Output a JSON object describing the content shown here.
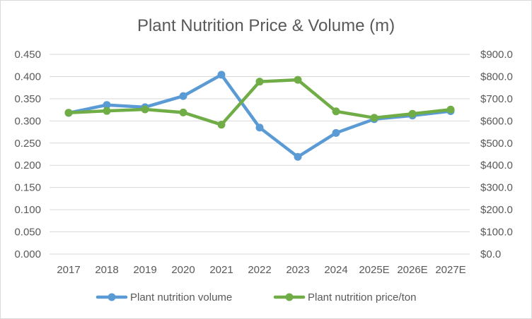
{
  "chart_data": {
    "type": "line",
    "title": "Plant Nutrition Price & Volume (m)",
    "categories": [
      "2017",
      "2018",
      "2019",
      "2020",
      "2021",
      "2022",
      "2023",
      "2024",
      "2025E",
      "2026E",
      "2027E"
    ],
    "series": [
      {
        "name": "Plant nutrition volume",
        "axis": "left",
        "color": "#5b9bd5",
        "values": [
          0.318,
          0.336,
          0.331,
          0.356,
          0.404,
          0.285,
          0.219,
          0.273,
          0.304,
          0.312,
          0.322
        ]
      },
      {
        "name": "Plant nutrition price/ton",
        "axis": "right",
        "color": "#70ad47",
        "values": [
          637,
          645,
          652,
          638,
          583,
          777,
          785,
          643,
          614,
          632,
          651
        ]
      }
    ],
    "y_left": {
      "min": 0,
      "max": 0.45,
      "step": 0.05,
      "tick_labels": [
        "0.000",
        "0.050",
        "0.100",
        "0.150",
        "0.200",
        "0.250",
        "0.300",
        "0.350",
        "0.400",
        "0.450"
      ]
    },
    "y_right": {
      "min": 0,
      "max": 900,
      "step": 100,
      "tick_labels": [
        "$0.0",
        "$100.0",
        "$200.0",
        "$300.0",
        "$400.0",
        "$500.0",
        "$600.0",
        "$700.0",
        "$800.0",
        "$900.0"
      ]
    },
    "grid": true,
    "legend_position": "bottom"
  }
}
